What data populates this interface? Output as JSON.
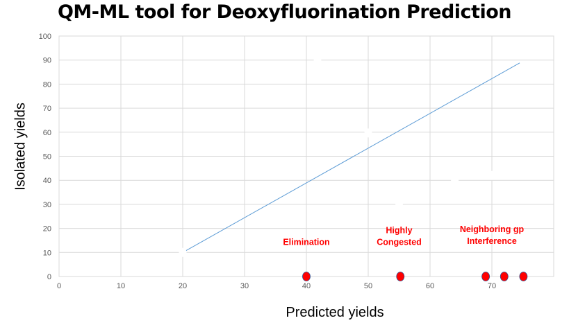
{
  "chart_data": {
    "type": "scatter",
    "title": "QM-ML tool for Deoxyfluorination Prediction",
    "xlabel": "Predicted yields",
    "ylabel": "Isolated yields",
    "xlim": [
      0,
      80
    ],
    "ylim": [
      0,
      100
    ],
    "x_ticks": [
      0,
      10,
      20,
      30,
      40,
      50,
      60,
      70
    ],
    "y_ticks": [
      0,
      10,
      20,
      30,
      40,
      50,
      60,
      70,
      80,
      90,
      100
    ],
    "grid": true,
    "series": [
      {
        "color": "#ffffff",
        "points": [
          [
            20,
            10
          ],
          [
            36.3,
            75
          ],
          [
            41.8,
            89.6
          ],
          [
            50,
            59.7
          ],
          [
            55,
            29.7
          ],
          [
            64,
            40
          ],
          [
            66.9,
            73
          ],
          [
            70,
            42
          ]
        ]
      },
      {
        "color": "#ff0000",
        "points": [
          [
            40,
            0
          ],
          [
            55.2,
            0
          ],
          [
            69,
            0
          ],
          [
            72,
            0
          ],
          [
            75.1,
            0
          ]
        ]
      }
    ],
    "trendline": {
      "color": "#5b9bd5",
      "from": [
        20,
        10
      ],
      "to": [
        74.5,
        88.8
      ]
    },
    "annotations": [
      {
        "lines": [
          "Elimination"
        ],
        "x": 40,
        "y": 14.5
      },
      {
        "lines": [
          "Highly",
          "Congested"
        ],
        "x": 55,
        "y": 17
      },
      {
        "lines": [
          "Neighboring gp",
          "Interference"
        ],
        "x": 70,
        "y": 17.5
      }
    ],
    "annotation_color": "#ff0000"
  }
}
